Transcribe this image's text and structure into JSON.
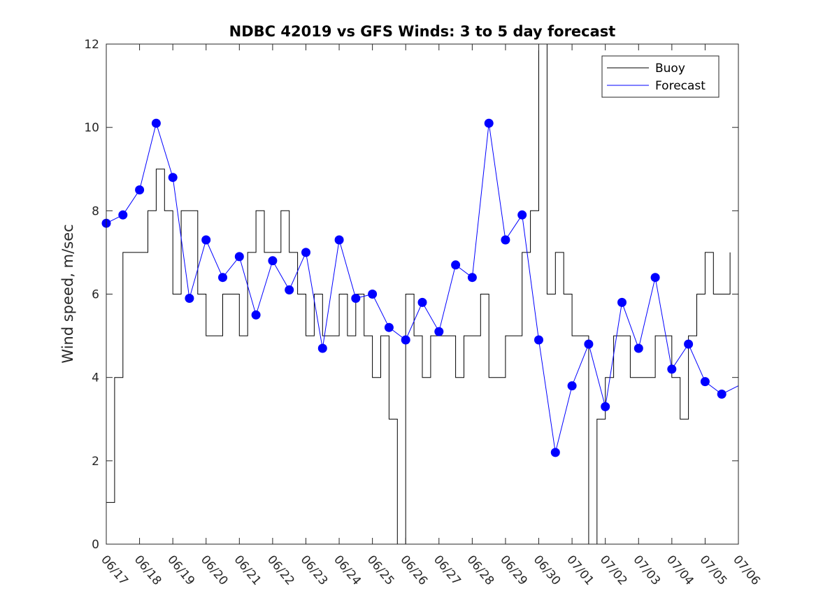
{
  "chart_data": {
    "type": "line",
    "title": "NDBC 42019 vs GFS Winds: 3 to 5 day forecast",
    "xlabel": "",
    "ylabel": "Wind speed, m/sec",
    "ylim": [
      0,
      12
    ],
    "yticks": [
      0,
      2,
      4,
      6,
      8,
      10,
      12
    ],
    "xlim": [
      "06/17",
      "07/06"
    ],
    "xticks": [
      "06/17",
      "06/18",
      "06/19",
      "06/20",
      "06/21",
      "06/22",
      "06/23",
      "06/24",
      "06/25",
      "06/26",
      "06/27",
      "06/28",
      "06/29",
      "06/30",
      "07/01",
      "07/02",
      "07/03",
      "07/04",
      "07/05",
      "07/06"
    ],
    "legend": {
      "position": "top-right",
      "entries": [
        "Buoy",
        "Forecast"
      ]
    },
    "colors": {
      "buoy": "#000000",
      "forecast": "#0000ff"
    },
    "series": [
      {
        "name": "Buoy",
        "x": [
          "06/17 00:00",
          "06/17 06:00",
          "06/17 12:00",
          "06/17 18:00",
          "06/18 00:00",
          "06/18 06:00",
          "06/18 12:00",
          "06/18 18:00",
          "06/19 00:00",
          "06/19 06:00",
          "06/19 12:00",
          "06/19 18:00",
          "06/20 00:00",
          "06/20 06:00",
          "06/20 12:00",
          "06/20 18:00",
          "06/21 00:00",
          "06/21 06:00",
          "06/21 12:00",
          "06/21 18:00",
          "06/22 00:00",
          "06/22 06:00",
          "06/22 12:00",
          "06/22 18:00",
          "06/23 00:00",
          "06/23 06:00",
          "06/23 12:00",
          "06/23 18:00",
          "06/24 00:00",
          "06/24 06:00",
          "06/24 12:00",
          "06/24 18:00",
          "06/25 00:00",
          "06/25 06:00",
          "06/25 12:00",
          "06/25 18:00",
          "06/26 00:00",
          "06/26 06:00",
          "06/26 12:00",
          "06/26 18:00",
          "06/27 00:00",
          "06/27 06:00",
          "06/27 12:00",
          "06/27 18:00",
          "06/28 00:00",
          "06/28 06:00",
          "06/28 12:00",
          "06/28 18:00",
          "06/29 00:00",
          "06/29 06:00",
          "06/29 12:00",
          "06/29 18:00",
          "06/30 00:00",
          "06/30 06:00",
          "06/30 12:00",
          "06/30 18:00",
          "07/01 00:00",
          "07/01 06:00",
          "07/01 12:00",
          "07/01 18:00",
          "07/02 00:00",
          "07/02 06:00",
          "07/02 12:00",
          "07/02 18:00",
          "07/03 00:00",
          "07/03 06:00",
          "07/03 12:00",
          "07/03 18:00",
          "07/04 00:00",
          "07/04 06:00",
          "07/04 12:00",
          "07/04 18:00",
          "07/05 00:00",
          "07/05 06:00",
          "07/05 12:00",
          "07/05 18:00"
        ],
        "values": [
          1,
          4,
          7,
          7,
          7,
          8,
          9,
          8,
          6,
          8,
          8,
          6,
          5,
          5,
          6,
          6,
          5,
          7,
          8,
          7,
          7,
          8,
          7,
          6,
          5,
          6,
          5,
          5,
          6,
          5,
          6,
          5,
          4,
          5,
          3,
          0,
          6,
          5,
          4,
          5,
          5,
          5,
          4,
          5,
          5,
          6,
          4,
          4,
          5,
          5,
          7,
          8,
          12,
          6,
          7,
          6,
          5,
          5,
          0,
          3,
          4,
          5,
          5,
          4,
          4,
          4,
          5,
          5,
          4,
          3,
          5,
          6,
          7,
          6,
          6,
          7
        ]
      },
      {
        "name": "Forecast",
        "x": [
          "06/17 00:00",
          "06/17 12:00",
          "06/18 00:00",
          "06/18 12:00",
          "06/19 00:00",
          "06/19 12:00",
          "06/20 00:00",
          "06/20 12:00",
          "06/21 00:00",
          "06/21 12:00",
          "06/22 00:00",
          "06/22 12:00",
          "06/23 00:00",
          "06/23 12:00",
          "06/24 00:00",
          "06/24 12:00",
          "06/25 00:00",
          "06/25 12:00",
          "06/26 00:00",
          "06/26 12:00",
          "06/27 00:00",
          "06/27 12:00",
          "06/28 00:00",
          "06/28 12:00",
          "06/29 00:00",
          "06/29 12:00",
          "06/30 00:00",
          "06/30 12:00",
          "07/01 00:00",
          "07/01 12:00",
          "07/02 00:00",
          "07/02 12:00",
          "07/03 00:00",
          "07/03 12:00",
          "07/04 00:00",
          "07/04 12:00",
          "07/05 00:00",
          "07/05 12:00",
          "07/06 00:00"
        ],
        "values": [
          7.7,
          7.9,
          8.5,
          10.1,
          8.8,
          5.9,
          7.3,
          6.4,
          6.9,
          5.5,
          6.8,
          6.1,
          7.0,
          4.7,
          7.3,
          5.9,
          6.0,
          5.2,
          4.9,
          5.8,
          5.1,
          6.7,
          6.4,
          10.1,
          7.3,
          7.9,
          4.9,
          2.2,
          3.8,
          4.8,
          3.3,
          5.8,
          4.7,
          6.4,
          4.2,
          4.8,
          3.9,
          3.6,
          3.8
        ]
      }
    ],
    "markers": {
      "name": "Forecast",
      "x": [
        "06/17 00:00",
        "06/17 12:00",
        "06/18 00:00",
        "06/18 12:00",
        "06/19 00:00",
        "06/19 12:00",
        "06/20 00:00",
        "06/20 12:00",
        "06/21 00:00",
        "06/21 12:00",
        "06/22 00:00",
        "06/22 12:00",
        "06/23 00:00",
        "06/23 12:00",
        "06/24 00:00",
        "06/24 12:00",
        "06/25 00:00",
        "06/25 12:00",
        "06/26 00:00",
        "06/26 12:00",
        "06/27 00:00",
        "06/27 12:00",
        "06/28 00:00",
        "06/28 12:00",
        "06/29 00:00",
        "06/29 12:00",
        "06/30 00:00",
        "06/30 12:00",
        "07/01 00:00",
        "07/01 12:00",
        "07/02 00:00",
        "07/02 12:00",
        "07/03 00:00",
        "07/03 12:00",
        "07/04 00:00",
        "07/04 12:00",
        "07/05 00:00",
        "07/05 12:00"
      ],
      "values": [
        7.7,
        7.9,
        8.5,
        10.1,
        8.8,
        5.9,
        7.3,
        6.4,
        6.9,
        5.5,
        6.8,
        6.1,
        7.0,
        4.7,
        7.3,
        5.9,
        6.0,
        5.2,
        4.9,
        5.8,
        5.1,
        6.7,
        6.4,
        10.1,
        7.3,
        7.9,
        4.9,
        2.2,
        3.8,
        4.8,
        3.3,
        5.8,
        4.7,
        6.4,
        4.2,
        4.8,
        3.9,
        3.6
      ]
    }
  }
}
